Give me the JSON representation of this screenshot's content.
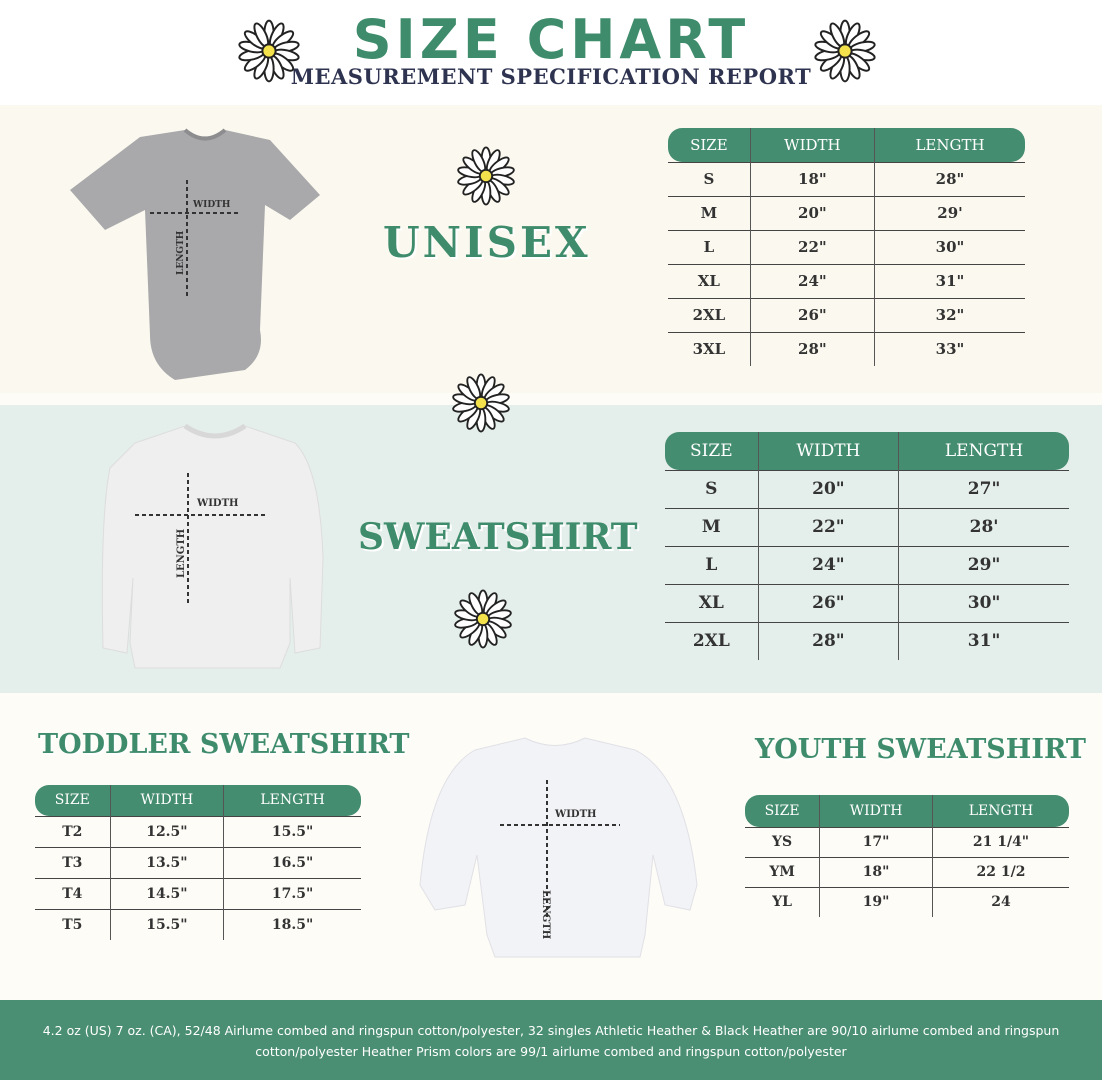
{
  "header": {
    "title": "SIZE CHART",
    "subtitle": "MEASUREMENT SPECIFICATION REPORT"
  },
  "colors": {
    "accent": "#3f8c6c",
    "header_bg": "#458d70",
    "navy": "#2e3350",
    "cream": "#fbf9ef",
    "teal_bg": "#e4eeeb"
  },
  "diagram_labels": {
    "width": "WIDTH",
    "length": "LENGTH"
  },
  "unisex": {
    "title": "UNISEX",
    "columns": [
      "SIZE",
      "WIDTH",
      "LENGTH"
    ],
    "rows": [
      [
        "S",
        "18\"",
        "28\""
      ],
      [
        "M",
        "20\"",
        "29'"
      ],
      [
        "L",
        "22\"",
        "30\""
      ],
      [
        "XL",
        "24\"",
        "31\""
      ],
      [
        "2XL",
        "26\"",
        "32\""
      ],
      [
        "3XL",
        "28\"",
        "33\""
      ]
    ]
  },
  "sweatshirt": {
    "title": "SWEATSHIRT",
    "columns": [
      "SIZE",
      "WIDTH",
      "LENGTH"
    ],
    "rows": [
      [
        "S",
        "20\"",
        "27\""
      ],
      [
        "M",
        "22\"",
        "28'"
      ],
      [
        "L",
        "24\"",
        "29\""
      ],
      [
        "XL",
        "26\"",
        "30\""
      ],
      [
        "2XL",
        "28\"",
        "31\""
      ]
    ]
  },
  "toddler": {
    "title": "TODDLER SWEATSHIRT",
    "columns": [
      "SIZE",
      "WIDTH",
      "LENGTH"
    ],
    "rows": [
      [
        "T2",
        "12.5\"",
        "15.5\""
      ],
      [
        "T3",
        "13.5\"",
        "16.5\""
      ],
      [
        "T4",
        "14.5\"",
        "17.5\""
      ],
      [
        "T5",
        "15.5\"",
        "18.5\""
      ]
    ]
  },
  "youth": {
    "title": "YOUTH SWEATSHIRT",
    "columns": [
      "SIZE",
      "WIDTH",
      "LENGTH"
    ],
    "rows": [
      [
        "YS",
        "17\"",
        "21 1/4\""
      ],
      [
        "YM",
        "18\"",
        "22 1/2"
      ],
      [
        "YL",
        "19\"",
        "24"
      ]
    ]
  },
  "footer": {
    "text": "4.2 oz (US) 7 oz. (CA), 52/48 Airlume combed and ringspun cotton/polyester, 32 singles Athletic Heather & Black Heather are 90/10 airlume combed and ringspun cotton/polyester Heather Prism colors are 99/1 airlume combed and ringspun cotton/polyester"
  }
}
